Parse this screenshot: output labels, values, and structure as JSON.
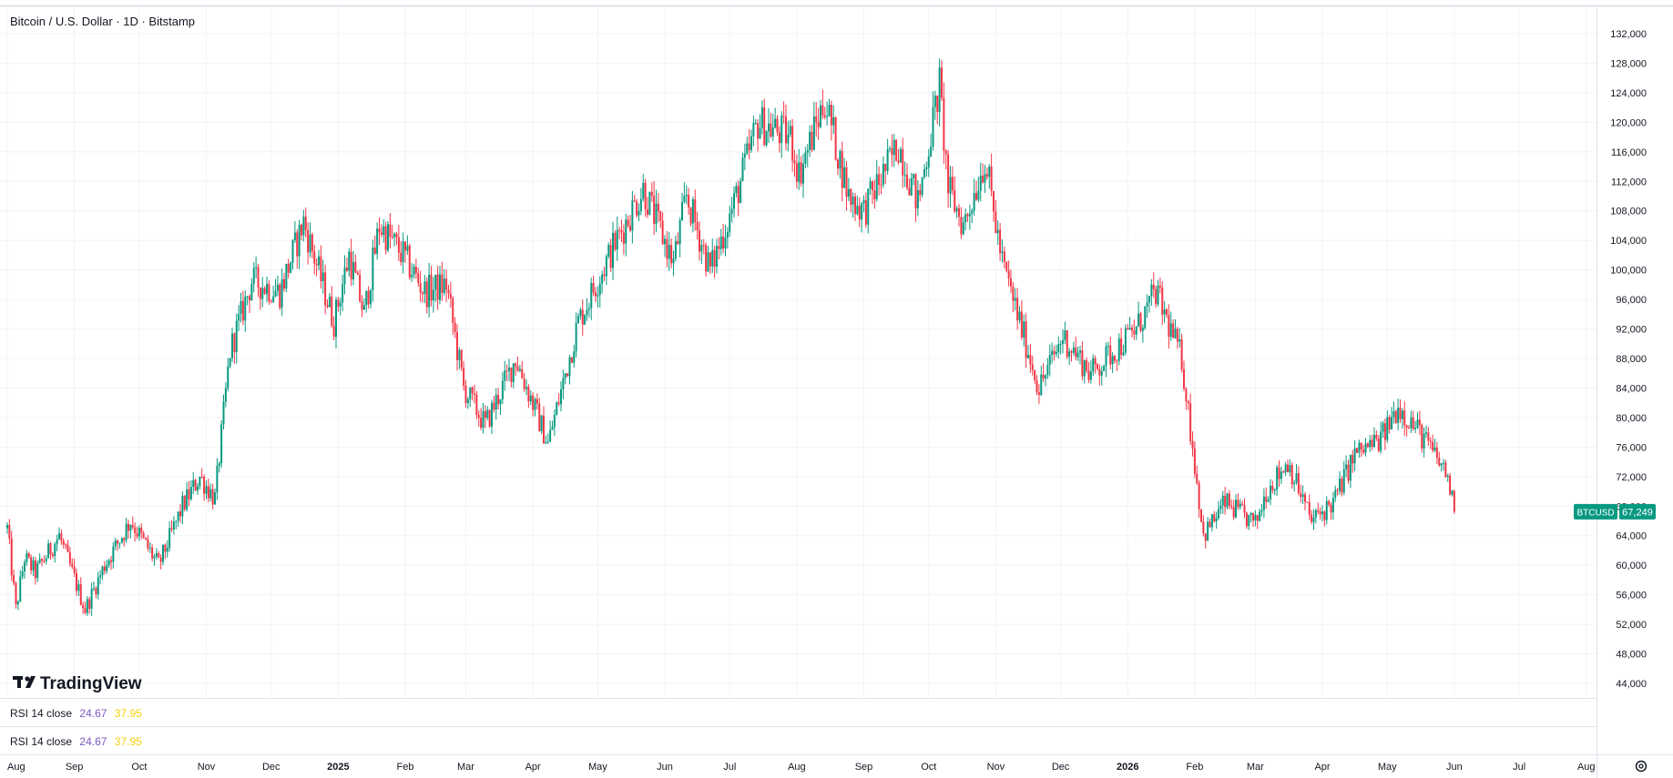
{
  "header": {
    "title": "Bitcoin / U.S. Dollar · 1D · Bitstamp"
  },
  "colors": {
    "up": "#089981",
    "down": "#f23645",
    "grid": "#f0f3fa",
    "rsi_value_1": "#7e57c2",
    "rsi_value_2": "#f4d00b",
    "price_badge": "#089981"
  },
  "price_badge": {
    "symbol": "BTCUSD",
    "price": "67,249",
    "value": 67249
  },
  "logo": {
    "text": "TradingView"
  },
  "rsi_panes": [
    {
      "label": "RSI 14 close",
      "value1": "24.67",
      "value2": "37.95"
    },
    {
      "label": "RSI 14 close",
      "value1": "24.67",
      "value2": "37.95"
    }
  ],
  "settings_icon": "gear-icon",
  "chart_data": {
    "type": "candlestick",
    "title": "Bitcoin / U.S. Dollar · 1D · Bitstamp",
    "y_axis": {
      "min": 44000,
      "max": 132000,
      "step": 4000,
      "ticks": [
        "132,000",
        "128,000",
        "124,000",
        "120,000",
        "116,000",
        "112,000",
        "108,000",
        "104,000",
        "100,000",
        "96,000",
        "92,000",
        "88,000",
        "84,000",
        "80,000",
        "76,000",
        "72,000",
        "68,000",
        "64,000",
        "60,000",
        "56,000",
        "52,000",
        "48,000",
        "44,000"
      ]
    },
    "x_axis": {
      "range": [
        "2024-08-01",
        "2026-08-31"
      ],
      "months": [
        {
          "label": "Aug",
          "date": "2024-08-01",
          "bold": false
        },
        {
          "label": "Sep",
          "date": "2024-09-01",
          "bold": false
        },
        {
          "label": "Oct",
          "date": "2024-10-01",
          "bold": false
        },
        {
          "label": "Nov",
          "date": "2024-11-01",
          "bold": false
        },
        {
          "label": "Dec",
          "date": "2024-12-01",
          "bold": false
        },
        {
          "label": "2025",
          "date": "2025-01-01",
          "bold": true
        },
        {
          "label": "Feb",
          "date": "2025-02-01",
          "bold": false
        },
        {
          "label": "Mar",
          "date": "2025-03-01",
          "bold": false
        },
        {
          "label": "Apr",
          "date": "2025-04-01",
          "bold": false
        },
        {
          "label": "May",
          "date": "2025-05-01",
          "bold": false
        },
        {
          "label": "Jun",
          "date": "2025-06-01",
          "bold": false
        },
        {
          "label": "Jul",
          "date": "2025-07-01",
          "bold": false
        },
        {
          "label": "Aug",
          "date": "2025-08-01",
          "bold": false
        },
        {
          "label": "Sep",
          "date": "2025-09-01",
          "bold": false
        },
        {
          "label": "Oct",
          "date": "2025-10-01",
          "bold": false
        },
        {
          "label": "Nov",
          "date": "2025-11-01",
          "bold": false
        },
        {
          "label": "Dec",
          "date": "2025-12-01",
          "bold": false
        },
        {
          "label": "2026",
          "date": "2026-01-01",
          "bold": true
        },
        {
          "label": "Feb",
          "date": "2026-02-01",
          "bold": false
        },
        {
          "label": "Mar",
          "date": "2026-03-01",
          "bold": false
        },
        {
          "label": "Apr",
          "date": "2026-04-01",
          "bold": false
        },
        {
          "label": "May",
          "date": "2026-05-01",
          "bold": false
        },
        {
          "label": "Jun",
          "date": "2026-06-01",
          "bold": false
        },
        {
          "label": "Jul",
          "date": "2026-07-01",
          "bold": false
        },
        {
          "label": "Aug",
          "date": "2026-08-01",
          "bold": false
        }
      ]
    },
    "close_path": [
      [
        "2024-08-01",
        65000
      ],
      [
        "2024-08-05",
        54000
      ],
      [
        "2024-08-09",
        61000
      ],
      [
        "2024-08-14",
        59000
      ],
      [
        "2024-08-25",
        64000
      ],
      [
        "2024-09-06",
        54000
      ],
      [
        "2024-09-15",
        60000
      ],
      [
        "2024-09-27",
        66000
      ],
      [
        "2024-10-10",
        60000
      ],
      [
        "2024-10-21",
        68000
      ],
      [
        "2024-10-29",
        72000
      ],
      [
        "2024-11-05",
        69000
      ],
      [
        "2024-11-12",
        89000
      ],
      [
        "2024-11-22",
        98500
      ],
      [
        "2024-12-05",
        97000
      ],
      [
        "2024-12-16",
        106500
      ],
      [
        "2024-12-30",
        93000
      ],
      [
        "2025-01-06",
        102000
      ],
      [
        "2025-01-13",
        94000
      ],
      [
        "2025-01-20",
        106000
      ],
      [
        "2025-01-31",
        102000
      ],
      [
        "2025-02-10",
        97000
      ],
      [
        "2025-02-20",
        98000
      ],
      [
        "2025-02-28",
        84000
      ],
      [
        "2025-03-10",
        79000
      ],
      [
        "2025-03-24",
        88000
      ],
      [
        "2025-04-08",
        76500
      ],
      [
        "2025-04-22",
        93000
      ],
      [
        "2025-05-08",
        103000
      ],
      [
        "2025-05-22",
        111000
      ],
      [
        "2025-06-05",
        101000
      ],
      [
        "2025-06-11",
        110000
      ],
      [
        "2025-06-22",
        100000
      ],
      [
        "2025-07-03",
        109000
      ],
      [
        "2025-07-14",
        120000
      ],
      [
        "2025-07-29",
        118000
      ],
      [
        "2025-08-02",
        113000
      ],
      [
        "2025-08-14",
        123000
      ],
      [
        "2025-08-25",
        110000
      ],
      [
        "2025-09-01",
        108000
      ],
      [
        "2025-09-17",
        117000
      ],
      [
        "2025-09-26",
        109000
      ],
      [
        "2025-10-06",
        125000
      ],
      [
        "2025-10-10",
        111000
      ],
      [
        "2025-10-17",
        106000
      ],
      [
        "2025-10-27",
        115000
      ],
      [
        "2025-11-04",
        101000
      ],
      [
        "2025-11-21",
        84000
      ],
      [
        "2025-12-02",
        91000
      ],
      [
        "2025-12-15",
        86000
      ],
      [
        "2026-01-05",
        92000
      ],
      [
        "2026-01-14",
        97000
      ],
      [
        "2026-01-26",
        88000
      ],
      [
        "2026-02-05",
        64000
      ],
      [
        "2026-02-15",
        68500
      ],
      [
        "2026-03-01",
        65500
      ],
      [
        "2026-03-06",
        70000
      ],
      [
        "2026-03-16",
        74000
      ],
      [
        "2026-03-27",
        66000
      ],
      [
        "2026-04-06",
        68500
      ],
      [
        "2026-04-16",
        75000
      ],
      [
        "2026-04-28",
        77000
      ],
      [
        "2026-05-06",
        81500
      ],
      [
        "2026-05-16",
        78000
      ],
      [
        "2026-05-26",
        73500
      ],
      [
        "2026-05-29",
        72000
      ],
      [
        "2026-06-01",
        67249
      ]
    ]
  }
}
